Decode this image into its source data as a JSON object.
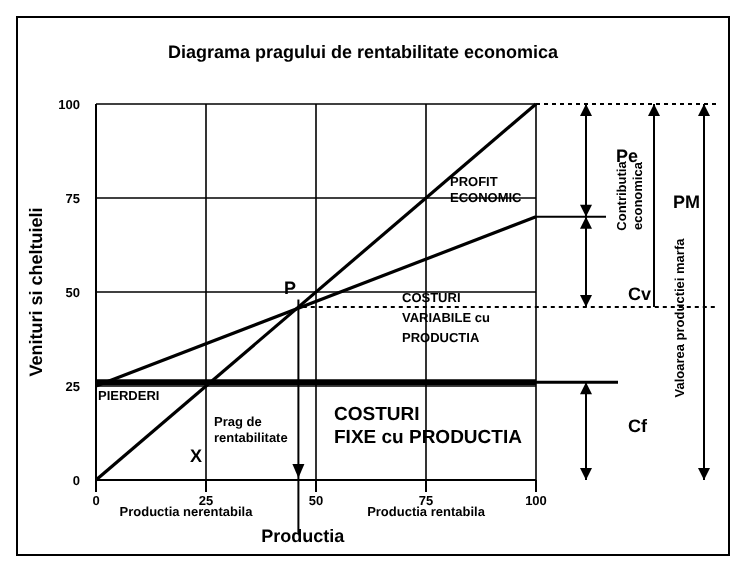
{
  "chart_data": {
    "type": "line",
    "title": "Diagrama pragului de rentabilitate economica",
    "xlabel": "Productia",
    "ylabel": "Venituri si cheltuieli",
    "xlim": [
      0,
      100
    ],
    "xticks": [
      0,
      25,
      50,
      75,
      100
    ],
    "ylim": [
      0,
      100
    ],
    "yticks": [
      0,
      25,
      50,
      75,
      100
    ],
    "grid": true,
    "marker": "none",
    "line_style": "solid",
    "series": [
      {
        "values": [
          0,
          100
        ],
        "color": "#000000"
      },
      {
        "values": [
          25,
          70
        ],
        "color": "#000000"
      },
      {
        "values": [
          26,
          26
        ],
        "color": "#000000"
      }
    ],
    "x": [
      0,
      100
    ],
    "ref_lines": [
      {
        "axis": "y",
        "value": 46,
        "line_style": "dotted"
      },
      {
        "axis": "x",
        "value": 46,
        "label": "Prag de rentabilitate",
        "line_style": "solid"
      }
    ],
    "annotations": [
      "P",
      "X",
      "PROFIT ECONOMIC",
      "COSTURI VARIABILE cu PRODUCTIA",
      "PIERDERI",
      "COSTURI FIXE cu PRODUCTIA",
      "Productia nerentabila",
      "Productia rentabila",
      "Pe",
      "Cv",
      "Cf",
      "Contributia economica",
      "Valoarea productiei marfa",
      "PM"
    ]
  }
}
